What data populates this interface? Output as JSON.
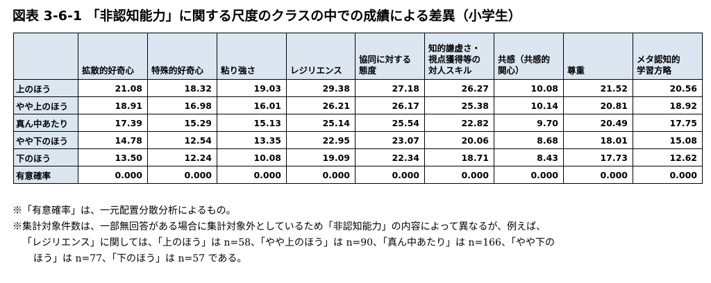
{
  "title": "図表 3-6-1 「非認知能力」に関する尺度のクラスの中での成績による差異（小学生）",
  "table": {
    "corner": "",
    "columns": [
      [
        "拡散的好奇心"
      ],
      [
        "特殊的好奇心"
      ],
      [
        "粘り強さ"
      ],
      [
        "レジリエンス"
      ],
      [
        "協同に対する",
        "態度"
      ],
      [
        "知的謙虚さ・",
        "視点獲得等の",
        "対人スキル"
      ],
      [
        "共感（共感的",
        "関心）"
      ],
      [
        "尊重"
      ],
      [
        "メタ認知的",
        "学習方略"
      ]
    ],
    "rows": [
      {
        "label": "上のほう",
        "values": [
          "21.08",
          "18.32",
          "19.03",
          "29.38",
          "27.18",
          "26.27",
          "10.08",
          "21.52",
          "20.56"
        ]
      },
      {
        "label": "やや上のほう",
        "values": [
          "18.91",
          "16.98",
          "16.01",
          "26.21",
          "26.17",
          "25.38",
          "10.14",
          "20.81",
          "18.92"
        ]
      },
      {
        "label": "真ん中あたり",
        "values": [
          "17.39",
          "15.29",
          "15.13",
          "25.14",
          "25.54",
          "22.82",
          "9.70",
          "20.49",
          "17.75"
        ]
      },
      {
        "label": "やや下のほう",
        "values": [
          "14.78",
          "12.54",
          "13.35",
          "22.95",
          "23.07",
          "20.06",
          "8.68",
          "18.01",
          "15.08"
        ]
      },
      {
        "label": "下のほう",
        "values": [
          "13.50",
          "12.24",
          "10.08",
          "19.09",
          "22.34",
          "18.71",
          "8.43",
          "17.73",
          "12.62"
        ]
      },
      {
        "label": "有意確率",
        "values": [
          "0.000",
          "0.000",
          "0.000",
          "0.000",
          "0.000",
          "0.000",
          "0.000",
          "0.000",
          "0.000"
        ]
      }
    ]
  },
  "notes": {
    "line1": "※「有意確率」は、一元配置分散分析によるもの。",
    "line2": "※集計対象件数は、一部無回答がある場合に集計対象外としているため「非認知能力」の内容によって異なるが、例えば、",
    "line3": "「レジリエンス」に関しては、「上のほう」は n=58、「やや上のほう」は n=90、「真ん中あたり」は n=166、「やや下の",
    "line4": "ほう」は n=77、「下のほう」は n=57 である。"
  }
}
